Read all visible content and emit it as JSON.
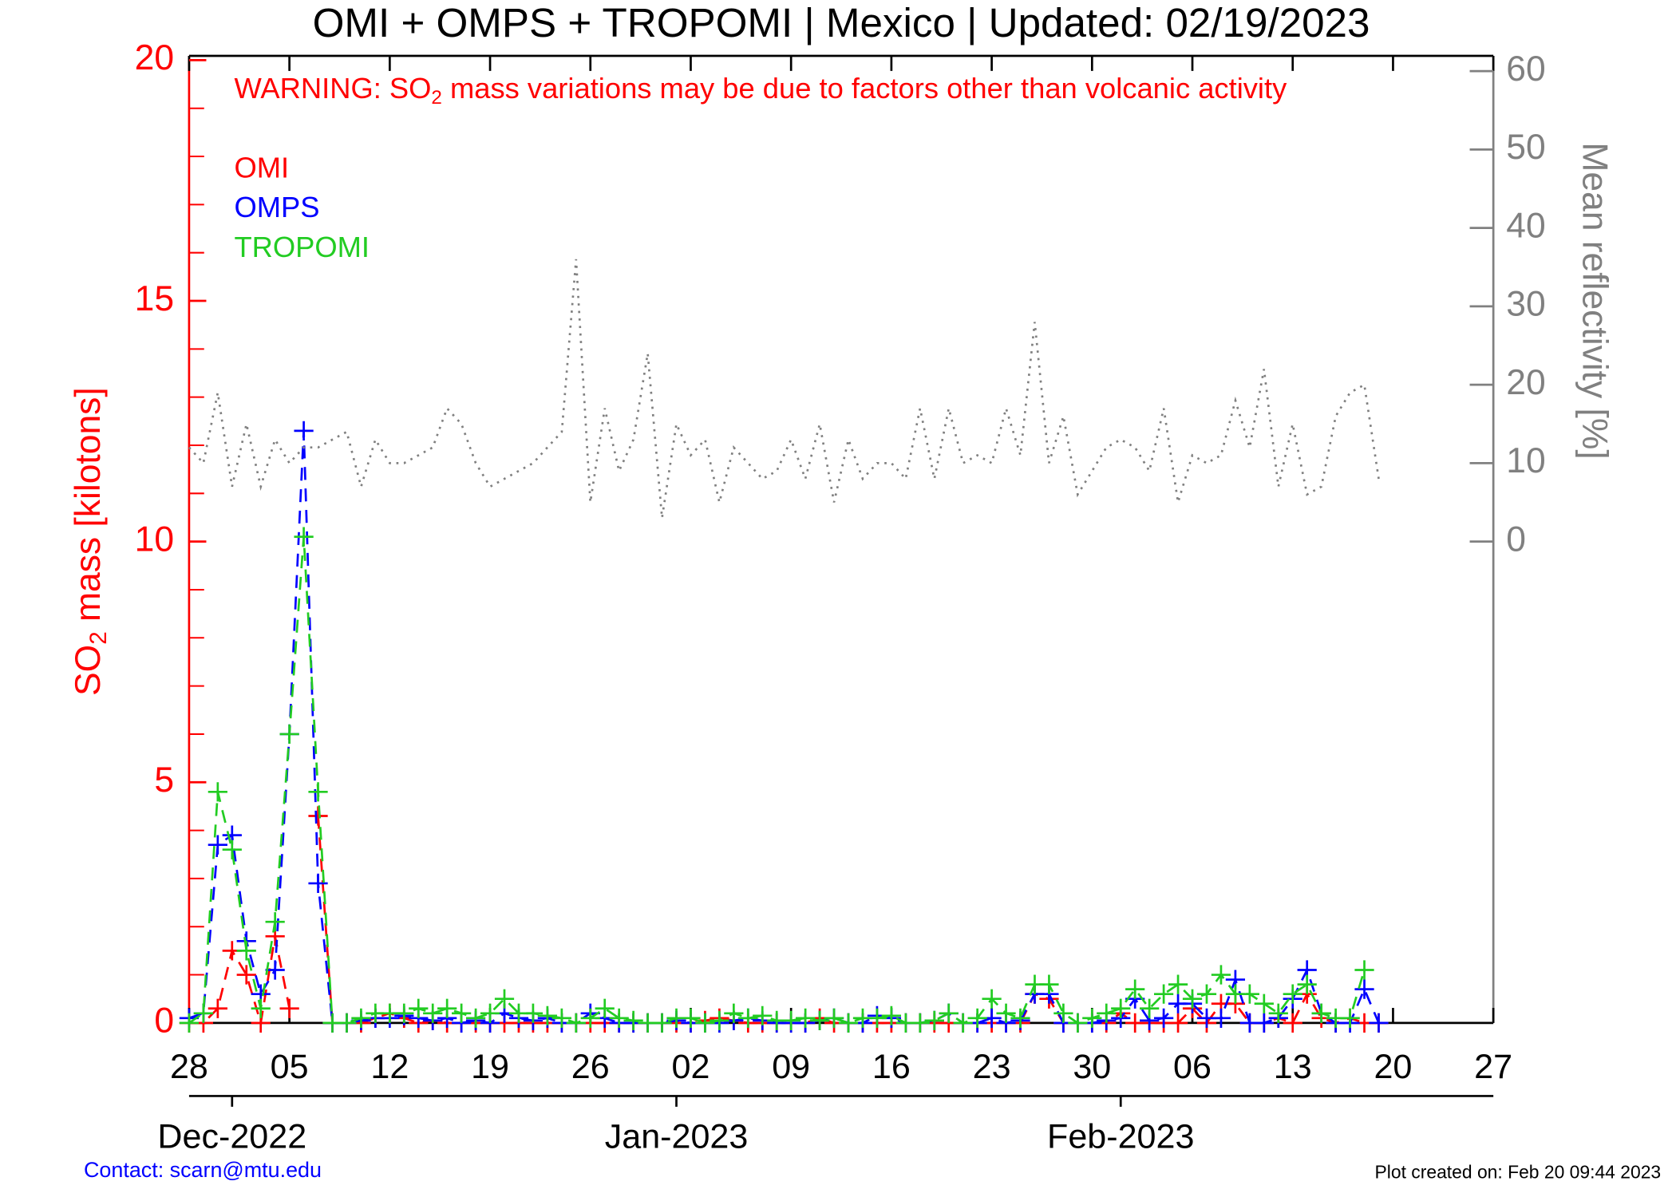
{
  "chart_data": {
    "type": "line",
    "title": "OMI + OMPS + TROPOMI | Mexico | Updated: 02/19/2023",
    "warning": {
      "before": "WARNING: SO",
      "sub": "2",
      "after": " mass variations may be due to factors other than volcanic activity"
    },
    "ylabel": {
      "before": "SO",
      "sub": "2",
      "after": " mass [kilotons]"
    },
    "y2label": "Mean reflectivity [%]",
    "contact": "Contact: scarn@mtu.edu",
    "created": "Plot created on: Feb 20 09:44 2023",
    "x": [
      "2022-11-28",
      "2022-11-29",
      "2022-11-30",
      "2022-12-01",
      "2022-12-02",
      "2022-12-03",
      "2022-12-04",
      "2022-12-05",
      "2022-12-06",
      "2022-12-07",
      "2022-12-08",
      "2022-12-09",
      "2022-12-10",
      "2022-12-11",
      "2022-12-12",
      "2022-12-13",
      "2022-12-14",
      "2022-12-15",
      "2022-12-16",
      "2022-12-17",
      "2022-12-18",
      "2022-12-19",
      "2022-12-20",
      "2022-12-21",
      "2022-12-22",
      "2022-12-23",
      "2022-12-24",
      "2022-12-25",
      "2022-12-26",
      "2022-12-27",
      "2022-12-28",
      "2022-12-29",
      "2022-12-30",
      "2022-12-31",
      "2023-01-01",
      "2023-01-02",
      "2023-01-03",
      "2023-01-04",
      "2023-01-05",
      "2023-01-06",
      "2023-01-07",
      "2023-01-08",
      "2023-01-09",
      "2023-01-10",
      "2023-01-11",
      "2023-01-12",
      "2023-01-13",
      "2023-01-14",
      "2023-01-15",
      "2023-01-16",
      "2023-01-17",
      "2023-01-18",
      "2023-01-19",
      "2023-01-20",
      "2023-01-21",
      "2023-01-22",
      "2023-01-23",
      "2023-01-24",
      "2023-01-25",
      "2023-01-26",
      "2023-01-27",
      "2023-01-28",
      "2023-01-29",
      "2023-01-30",
      "2023-01-31",
      "2023-02-01",
      "2023-02-02",
      "2023-02-03",
      "2023-02-04",
      "2023-02-05",
      "2023-02-06",
      "2023-02-07",
      "2023-02-08",
      "2023-02-09",
      "2023-02-10",
      "2023-02-11",
      "2023-02-12",
      "2023-02-13",
      "2023-02-14",
      "2023-02-15",
      "2023-02-16",
      "2023-02-17",
      "2023-02-18",
      "2023-02-19"
    ],
    "xlim": [
      "2022-11-28",
      "2023-02-27"
    ],
    "xticks": [
      {
        "value": "2022-11-28",
        "label": "28"
      },
      {
        "value": "2022-12-05",
        "label": "05"
      },
      {
        "value": "2022-12-12",
        "label": "12"
      },
      {
        "value": "2022-12-19",
        "label": "19"
      },
      {
        "value": "2022-12-26",
        "label": "26"
      },
      {
        "value": "2023-01-02",
        "label": "02"
      },
      {
        "value": "2023-01-09",
        "label": "09"
      },
      {
        "value": "2023-01-16",
        "label": "16"
      },
      {
        "value": "2023-01-23",
        "label": "23"
      },
      {
        "value": "2023-01-30",
        "label": "30"
      },
      {
        "value": "2023-02-06",
        "label": "06"
      },
      {
        "value": "2023-02-13",
        "label": "13"
      },
      {
        "value": "2023-02-20",
        "label": "20"
      },
      {
        "value": "2023-02-27",
        "label": "27"
      }
    ],
    "month_ticks": [
      {
        "value": "2022-12-01",
        "label": "Dec-2022"
      },
      {
        "value": "2023-01-01",
        "label": "Jan-2023"
      },
      {
        "value": "2023-02-01",
        "label": "Feb-2023"
      }
    ],
    "ylim": [
      0,
      20
    ],
    "yticks": [
      0,
      5,
      10,
      15,
      20
    ],
    "yminor_ticks": [
      1,
      2,
      3,
      4,
      6,
      7,
      8,
      9,
      11,
      12,
      13,
      14,
      16,
      17,
      18,
      19
    ],
    "y2lim": [
      -61.4,
      61.4
    ],
    "y2ticks": [
      0,
      10,
      20,
      30,
      40,
      50,
      60
    ],
    "left_axis_color": "#ff0000",
    "right_axis_color": "#808080",
    "warning_color": "#ff0000",
    "series": [
      {
        "name": "OMI",
        "color": "#ff0000",
        "style": "dashed",
        "marker": "+",
        "values": [
          0,
          0,
          0.3,
          1.5,
          1.0,
          0,
          1.8,
          0.3,
          null,
          4.3,
          0,
          0,
          0,
          0.1,
          0.2,
          0.1,
          0,
          0.05,
          0,
          0,
          0,
          0,
          0,
          0,
          0,
          0,
          0,
          0,
          0,
          0,
          0,
          0,
          0,
          0,
          0,
          0,
          0.05,
          0.1,
          0.05,
          0,
          0,
          0,
          0,
          0,
          0.1,
          0,
          0,
          0,
          0,
          0,
          0,
          0,
          0,
          0,
          0,
          0,
          0,
          0,
          0,
          0.6,
          0.5,
          0,
          0,
          0,
          0,
          0.2,
          0,
          0,
          0,
          0,
          0.3,
          0,
          0.4,
          0.4,
          0,
          0,
          0.1,
          0,
          0.6,
          0.1,
          0,
          0.1,
          0,
          0
        ]
      },
      {
        "name": "OMPS",
        "color": "#0000ff",
        "style": "dashed",
        "marker": "+",
        "values": [
          0.1,
          0.2,
          3.7,
          3.9,
          1.7,
          0.6,
          1.1,
          6.0,
          12.3,
          2.9,
          0,
          0,
          0.05,
          0.1,
          0.1,
          0.15,
          0.1,
          0.05,
          0.1,
          0,
          0.05,
          0,
          0.2,
          0.1,
          0.05,
          0.1,
          0,
          0,
          0.2,
          0.1,
          0,
          0,
          0,
          0,
          0.05,
          0,
          0,
          0,
          0.05,
          0.1,
          0.05,
          0,
          0,
          0,
          0.05,
          0.1,
          0,
          0,
          0.15,
          0.1,
          0,
          0,
          0.05,
          0.2,
          0,
          0,
          0.1,
          0,
          0.05,
          0.6,
          0.6,
          0,
          0,
          0,
          0.05,
          0.1,
          0.5,
          0.05,
          0.1,
          0.4,
          0.4,
          0.1,
          0.1,
          0.9,
          0,
          0,
          0.1,
          0.5,
          1.1,
          0.2,
          0,
          0,
          0.7,
          0
        ]
      },
      {
        "name": "TROPOMI",
        "color": "#22cc22",
        "style": "dashed",
        "marker": "+",
        "values": [
          0,
          0.2,
          4.8,
          3.6,
          1.5,
          0.3,
          2.1,
          6.0,
          10.1,
          4.8,
          0,
          0,
          0.1,
          0.2,
          0.2,
          0.2,
          0.3,
          0.2,
          0.3,
          0.2,
          0.1,
          0.2,
          0.5,
          0.2,
          0.2,
          0.15,
          0.1,
          0,
          0.1,
          0.3,
          0.1,
          0.05,
          0,
          0,
          0.1,
          0.1,
          0,
          0.05,
          0.2,
          0.1,
          0.15,
          0.05,
          0.05,
          0.1,
          0.05,
          0.1,
          0,
          0.1,
          0.1,
          0.15,
          0,
          0,
          0.05,
          0.2,
          0,
          0.1,
          0.5,
          0.2,
          0.1,
          0.8,
          0.8,
          0.2,
          0,
          0.1,
          0.2,
          0.3,
          0.7,
          0.3,
          0.6,
          0.8,
          0.5,
          0.6,
          1.0,
          0.6,
          0.6,
          0.4,
          0.2,
          0.6,
          0.8,
          0.2,
          0.1,
          0.1,
          1.1,
          null
        ]
      },
      {
        "color": "#808080",
        "style": "dotted",
        "axis": "y2",
        "values": [
          12,
          10,
          19,
          7,
          15,
          7,
          13,
          10,
          12,
          12,
          13,
          14,
          7,
          13,
          10,
          10,
          11,
          12,
          17,
          15,
          10,
          7,
          8,
          9,
          10,
          12,
          14,
          36,
          5,
          17,
          9,
          13,
          24,
          3,
          15,
          11,
          13,
          5,
          12,
          10,
          8,
          9,
          13,
          8,
          15,
          5,
          13,
          8,
          10,
          10,
          8,
          17,
          8,
          17,
          10,
          11,
          10,
          17,
          11,
          28,
          10,
          16,
          6,
          9,
          12,
          13,
          12,
          9,
          17,
          5,
          11,
          10,
          11,
          18,
          12,
          22,
          7,
          15,
          6,
          7,
          16,
          19,
          20,
          8
        ]
      }
    ]
  }
}
